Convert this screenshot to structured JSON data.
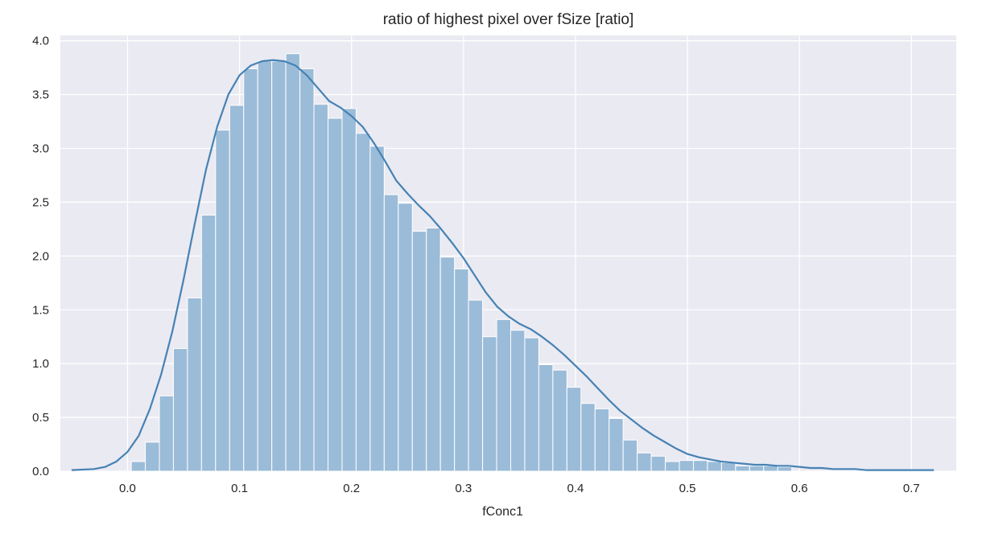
{
  "chart_data": {
    "type": "histogram",
    "title": "ratio of highest pixel over fSize [ratio]",
    "xlabel": "fConc1",
    "ylabel": "",
    "xlim": [
      -0.06,
      0.74
    ],
    "ylim": [
      0,
      4.05
    ],
    "x_ticks": [
      {
        "value": 0.0,
        "label": "0.0"
      },
      {
        "value": 0.1,
        "label": "0.1"
      },
      {
        "value": 0.2,
        "label": "0.2"
      },
      {
        "value": 0.3,
        "label": "0.3"
      },
      {
        "value": 0.4,
        "label": "0.4"
      },
      {
        "value": 0.5,
        "label": "0.5"
      },
      {
        "value": 0.6,
        "label": "0.6"
      },
      {
        "value": 0.7,
        "label": "0.7"
      }
    ],
    "y_ticks": [
      {
        "value": 0.0,
        "label": "0.0"
      },
      {
        "value": 0.5,
        "label": "0.5"
      },
      {
        "value": 1.0,
        "label": "1.0"
      },
      {
        "value": 1.5,
        "label": "1.5"
      },
      {
        "value": 2.0,
        "label": "2.0"
      },
      {
        "value": 2.5,
        "label": "2.5"
      },
      {
        "value": 3.0,
        "label": "3.0"
      },
      {
        "value": 3.5,
        "label": "3.5"
      },
      {
        "value": 4.0,
        "label": "4.0"
      }
    ],
    "grid": true,
    "background": "#eaeaf2",
    "bar_color": "#9bbcd8",
    "line_color": "#4682b4",
    "bins": {
      "start": 0.0033,
      "width": 0.01255,
      "density": [
        0.09,
        0.27,
        0.7,
        1.14,
        1.61,
        2.38,
        3.17,
        3.4,
        3.74,
        3.81,
        3.81,
        3.88,
        3.74,
        3.41,
        3.28,
        3.37,
        3.14,
        3.02,
        2.57,
        2.49,
        2.23,
        2.26,
        1.99,
        1.88,
        1.59,
        1.25,
        1.41,
        1.31,
        1.24,
        0.99,
        0.94,
        0.78,
        0.63,
        0.58,
        0.49,
        0.29,
        0.17,
        0.14,
        0.09,
        0.1,
        0.1,
        0.09,
        0.08,
        0.05,
        0.05,
        0.05,
        0.04
      ]
    },
    "kde": {
      "x": [
        -0.05,
        -0.03,
        -0.02,
        -0.01,
        0.0,
        0.01,
        0.02,
        0.03,
        0.04,
        0.05,
        0.06,
        0.07,
        0.08,
        0.09,
        0.1,
        0.11,
        0.12,
        0.13,
        0.14,
        0.15,
        0.16,
        0.17,
        0.18,
        0.19,
        0.2,
        0.21,
        0.22,
        0.23,
        0.24,
        0.25,
        0.26,
        0.27,
        0.28,
        0.29,
        0.3,
        0.31,
        0.32,
        0.33,
        0.34,
        0.35,
        0.36,
        0.37,
        0.38,
        0.39,
        0.4,
        0.41,
        0.42,
        0.43,
        0.44,
        0.45,
        0.46,
        0.47,
        0.48,
        0.49,
        0.5,
        0.51,
        0.52,
        0.53,
        0.54,
        0.55,
        0.56,
        0.57,
        0.58,
        0.59,
        0.6,
        0.61,
        0.62,
        0.63,
        0.64,
        0.65,
        0.66,
        0.68,
        0.7,
        0.72
      ],
      "y": [
        0.01,
        0.02,
        0.04,
        0.09,
        0.18,
        0.33,
        0.58,
        0.9,
        1.3,
        1.78,
        2.3,
        2.8,
        3.2,
        3.5,
        3.68,
        3.77,
        3.81,
        3.82,
        3.81,
        3.77,
        3.68,
        3.56,
        3.44,
        3.38,
        3.3,
        3.2,
        3.05,
        2.88,
        2.7,
        2.58,
        2.47,
        2.37,
        2.25,
        2.12,
        1.98,
        1.82,
        1.66,
        1.53,
        1.44,
        1.37,
        1.32,
        1.25,
        1.17,
        1.08,
        0.98,
        0.88,
        0.77,
        0.66,
        0.56,
        0.48,
        0.4,
        0.33,
        0.27,
        0.21,
        0.16,
        0.13,
        0.11,
        0.09,
        0.08,
        0.07,
        0.06,
        0.06,
        0.05,
        0.05,
        0.04,
        0.03,
        0.03,
        0.02,
        0.02,
        0.02,
        0.01,
        0.01,
        0.01,
        0.01
      ]
    }
  }
}
